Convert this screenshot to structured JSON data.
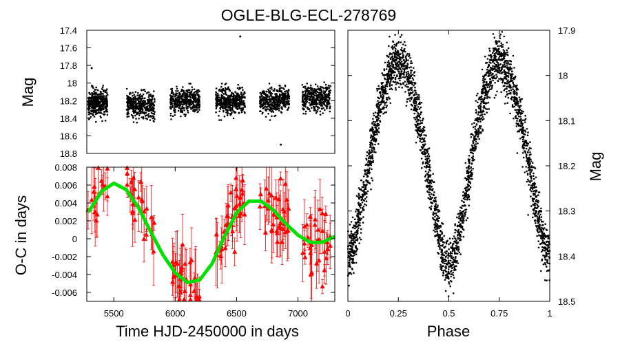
{
  "figure_title": "OGLE-BLG-ECL-278769",
  "chart_data": [
    {
      "id": "lightcurve_time",
      "type": "scatter",
      "ylabel": "Mag",
      "xlim": [
        5280,
        7300
      ],
      "ylim": [
        18.8,
        17.4
      ],
      "y_inverted": true,
      "yticks": [
        "17.4",
        "17.6",
        "17.8",
        "18",
        "18.2",
        "18.4",
        "18.6",
        "18.8"
      ],
      "marker_color": "#000000",
      "seasons": [
        {
          "center": 5370,
          "width": 160,
          "mag_mean": 18.22,
          "mag_spread": 0.13
        },
        {
          "center": 5720,
          "width": 230,
          "mag_mean": 18.25,
          "mag_spread": 0.13
        },
        {
          "center": 6080,
          "width": 240,
          "mag_mean": 18.2,
          "mag_spread": 0.13
        },
        {
          "center": 6450,
          "width": 240,
          "mag_mean": 18.2,
          "mag_spread": 0.13
        },
        {
          "center": 6810,
          "width": 240,
          "mag_mean": 18.2,
          "mag_spread": 0.13
        },
        {
          "center": 7150,
          "width": 230,
          "mag_mean": 18.17,
          "mag_spread": 0.12
        }
      ],
      "outliers": [
        {
          "x": 5320,
          "y": 17.83
        },
        {
          "x": 6530,
          "y": 17.47
        },
        {
          "x": 6860,
          "y": 18.7
        }
      ]
    },
    {
      "id": "oc_diagram",
      "type": "scatter",
      "ylabel": "O-C in days",
      "xlabel": "Time HJD-2450000 in days",
      "xlim": [
        5280,
        7300
      ],
      "ylim": [
        -0.007,
        0.008
      ],
      "xticks": [
        "5500",
        "6000",
        "6500",
        "7000"
      ],
      "yticks": [
        "0.008",
        "0.006",
        "0.004",
        "0.002",
        "0",
        "-0.002",
        "-0.004",
        "-0.006"
      ],
      "marker_color": "#ff0000",
      "fit_color": "#00e000",
      "fit_curve": [
        {
          "x": 5300,
          "y": 0.0031
        },
        {
          "x": 5400,
          "y": 0.0053
        },
        {
          "x": 5500,
          "y": 0.0062
        },
        {
          "x": 5600,
          "y": 0.0055
        },
        {
          "x": 5700,
          "y": 0.0035
        },
        {
          "x": 5800,
          "y": 0.0008
        },
        {
          "x": 5900,
          "y": -0.0018
        },
        {
          "x": 6000,
          "y": -0.0038
        },
        {
          "x": 6100,
          "y": -0.0049
        },
        {
          "x": 6200,
          "y": -0.0046
        },
        {
          "x": 6300,
          "y": -0.0028
        },
        {
          "x": 6400,
          "y": 0.0002
        },
        {
          "x": 6500,
          "y": 0.0029
        },
        {
          "x": 6600,
          "y": 0.0042
        },
        {
          "x": 6700,
          "y": 0.0042
        },
        {
          "x": 6800,
          "y": 0.0032
        },
        {
          "x": 6900,
          "y": 0.0017
        },
        {
          "x": 7000,
          "y": 0.0004
        },
        {
          "x": 7100,
          "y": -0.0004
        },
        {
          "x": 7200,
          "y": -0.0004
        },
        {
          "x": 7290,
          "y": 0.0002
        }
      ],
      "seasons": [
        {
          "center": 5370,
          "width": 160,
          "n": 16
        },
        {
          "center": 5720,
          "width": 230,
          "n": 26
        },
        {
          "center": 6080,
          "width": 240,
          "n": 34
        },
        {
          "center": 6450,
          "width": 240,
          "n": 36
        },
        {
          "center": 6810,
          "width": 240,
          "n": 34
        },
        {
          "center": 7150,
          "width": 230,
          "n": 34
        }
      ]
    },
    {
      "id": "phased_lightcurve",
      "type": "scatter",
      "xlabel": "Phase",
      "ylabel": "Mag",
      "xlim": [
        0,
        1
      ],
      "ylim": [
        18.5,
        17.9
      ],
      "y_inverted": true,
      "xticks": [
        "0",
        "0.25",
        "0.5",
        "0.75",
        "1"
      ],
      "yticks": [
        "17.9",
        "18",
        "18.1",
        "18.2",
        "18.3",
        "18.4",
        "18.5"
      ],
      "marker_color": "#000000",
      "primary_minimum": {
        "phase": 0.5,
        "mag": 18.43
      },
      "secondary_minimum": {
        "phase": 0.0,
        "mag": 18.4
      },
      "maxima": [
        {
          "phase": 0.25,
          "mag": 17.97
        },
        {
          "phase": 0.75,
          "mag": 17.97
        }
      ]
    }
  ]
}
